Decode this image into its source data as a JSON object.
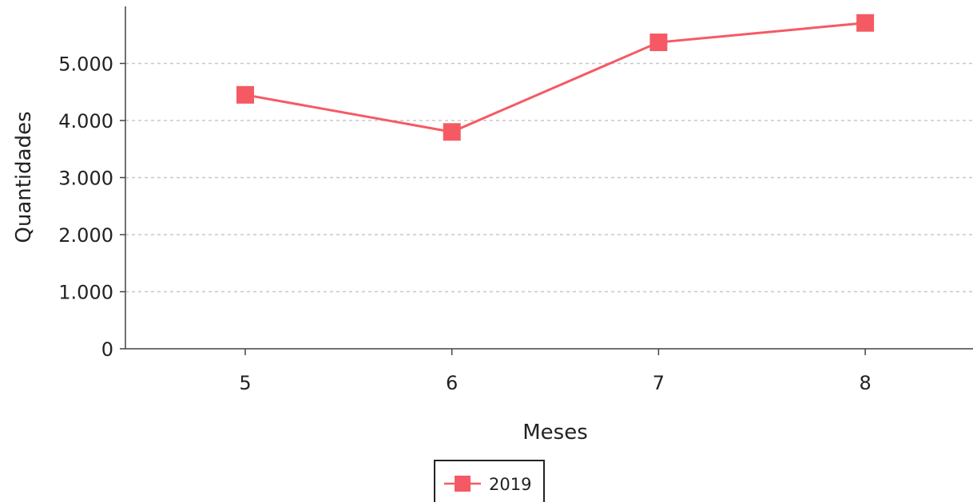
{
  "chart_data": {
    "type": "line",
    "title": "",
    "xlabel": "Meses",
    "ylabel": "Quantidades",
    "categories": [
      "5",
      "6",
      "7",
      "8"
    ],
    "series": [
      {
        "name": "2019",
        "color": "#f55a64",
        "marker": "square",
        "values": [
          4450,
          3800,
          5370,
          5710
        ]
      }
    ],
    "ylim": [
      0,
      6000
    ],
    "yticks": [
      0,
      1000,
      2000,
      3000,
      4000,
      5000
    ],
    "ytick_labels": [
      "0",
      "1.000",
      "2.000",
      "3.000",
      "4.000",
      "5.000"
    ],
    "grid": "horizontal-dashed",
    "legend_position": "bottom-center"
  }
}
